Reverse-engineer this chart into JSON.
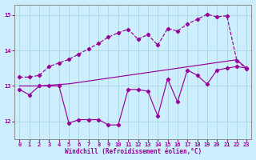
{
  "xlabel": "Windchill (Refroidissement éolien,°C)",
  "background_color": "#cceeff",
  "grid_color": "#aadddd",
  "line_color": "#990099",
  "xlim": [
    -0.5,
    23.5
  ],
  "ylim": [
    11.5,
    15.3
  ],
  "yticks": [
    12,
    13,
    14,
    15
  ],
  "xticks": [
    0,
    1,
    2,
    3,
    4,
    5,
    6,
    7,
    8,
    9,
    10,
    11,
    12,
    13,
    14,
    15,
    16,
    17,
    18,
    19,
    20,
    21,
    22,
    23
  ],
  "s1_x": [
    0,
    1,
    2,
    3,
    4,
    5,
    6,
    7,
    8,
    9,
    10,
    11,
    12,
    13,
    14,
    15,
    16,
    17,
    18,
    19,
    20,
    21,
    22,
    23
  ],
  "s1_y": [
    12.9,
    12.75,
    13.0,
    13.0,
    13.0,
    11.95,
    12.05,
    12.05,
    12.05,
    11.9,
    11.9,
    12.9,
    12.9,
    12.85,
    12.15,
    13.2,
    12.55,
    13.45,
    13.3,
    13.05,
    13.45,
    13.5,
    13.55,
    13.5
  ],
  "s2_x": [
    0,
    1,
    2,
    3,
    4,
    5,
    6,
    7,
    8,
    9,
    10,
    11,
    12,
    13,
    14,
    15,
    16,
    17,
    18,
    19,
    20,
    21,
    22,
    23
  ],
  "s2_y": [
    13.0,
    13.0,
    13.0,
    13.02,
    13.04,
    13.06,
    13.1,
    13.14,
    13.18,
    13.22,
    13.26,
    13.3,
    13.34,
    13.38,
    13.42,
    13.46,
    13.5,
    13.54,
    13.58,
    13.62,
    13.66,
    13.7,
    13.74,
    13.5
  ],
  "s3_x": [
    0,
    1,
    2,
    3,
    4,
    5,
    6,
    7,
    8,
    9,
    10,
    11,
    12,
    13,
    14,
    15,
    16,
    17,
    18,
    19,
    20,
    21,
    22,
    23
  ],
  "s3_y": [
    13.25,
    13.25,
    13.3,
    13.55,
    13.65,
    13.75,
    13.9,
    14.05,
    14.2,
    14.38,
    14.5,
    14.6,
    14.32,
    14.45,
    14.15,
    14.62,
    14.55,
    14.75,
    14.88,
    15.02,
    14.95,
    14.98,
    13.72,
    13.48
  ]
}
